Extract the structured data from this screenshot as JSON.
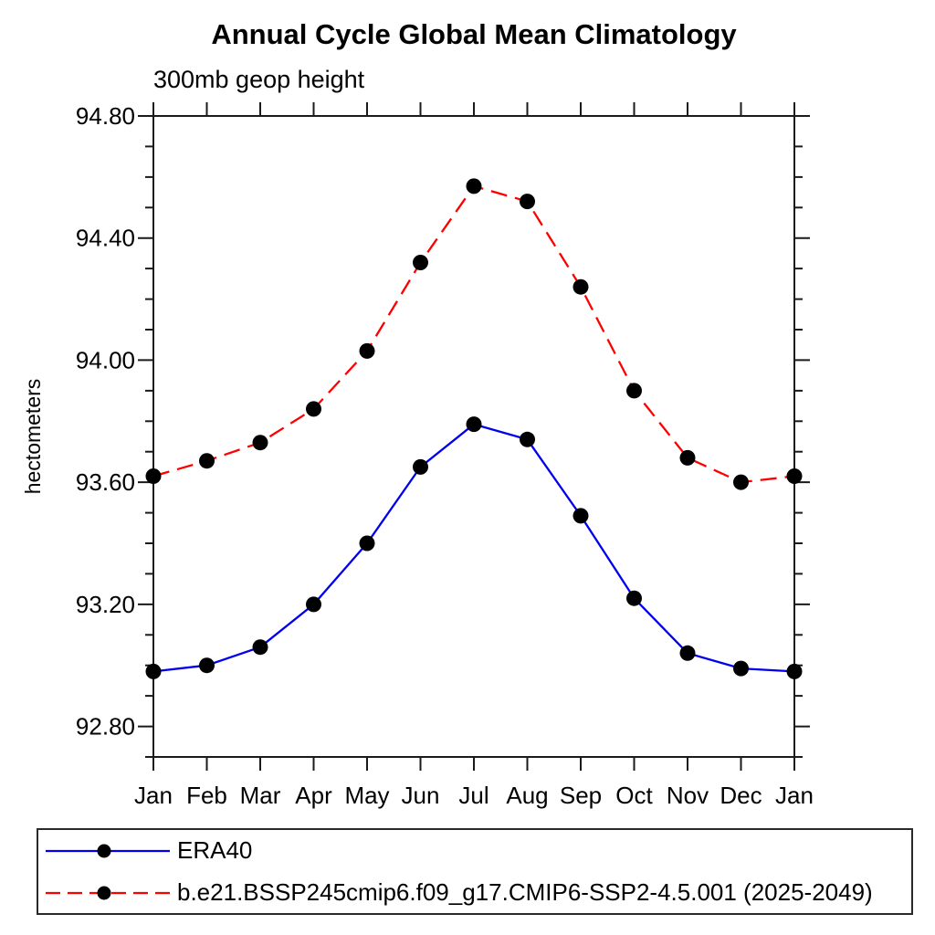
{
  "chart_data": {
    "type": "line",
    "title": "Annual Cycle Global Mean Climatology",
    "subtitle": "300mb geop height",
    "ylabel": "hectometers",
    "xlabel": "",
    "categories": [
      "Jan",
      "Feb",
      "Mar",
      "Apr",
      "May",
      "Jun",
      "Jul",
      "Aug",
      "Sep",
      "Oct",
      "Nov",
      "Dec",
      "Jan"
    ],
    "ylim": [
      92.7,
      94.8
    ],
    "y_major_ticks": [
      92.8,
      93.2,
      93.6,
      94.0,
      94.4,
      94.8
    ],
    "y_tick_labels": [
      "92.80",
      "93.20",
      "93.60",
      "94.00",
      "94.40",
      "94.80"
    ],
    "y_minor_step": 0.1,
    "grid": false,
    "legend_position": "bottom",
    "axis_color": "#1a1a1a",
    "marker_color": "#000000",
    "series": [
      {
        "name": "ERA40",
        "color": "#0000ee",
        "line_style": "solid",
        "marker": "filled-circle",
        "values": [
          92.98,
          93.0,
          93.06,
          93.2,
          93.4,
          93.65,
          93.79,
          93.74,
          93.49,
          93.22,
          93.04,
          92.99,
          92.98
        ]
      },
      {
        "name": "b.e21.BSSP245cmip6.f09_g17.CMIP6-SSP2-4.5.001 (2025-2049)",
        "color": "#ff0000",
        "line_style": "dashed",
        "marker": "filled-circle",
        "values": [
          93.62,
          93.67,
          93.73,
          93.84,
          94.03,
          94.32,
          94.57,
          94.52,
          94.24,
          93.9,
          93.68,
          93.6,
          93.62
        ]
      }
    ]
  }
}
